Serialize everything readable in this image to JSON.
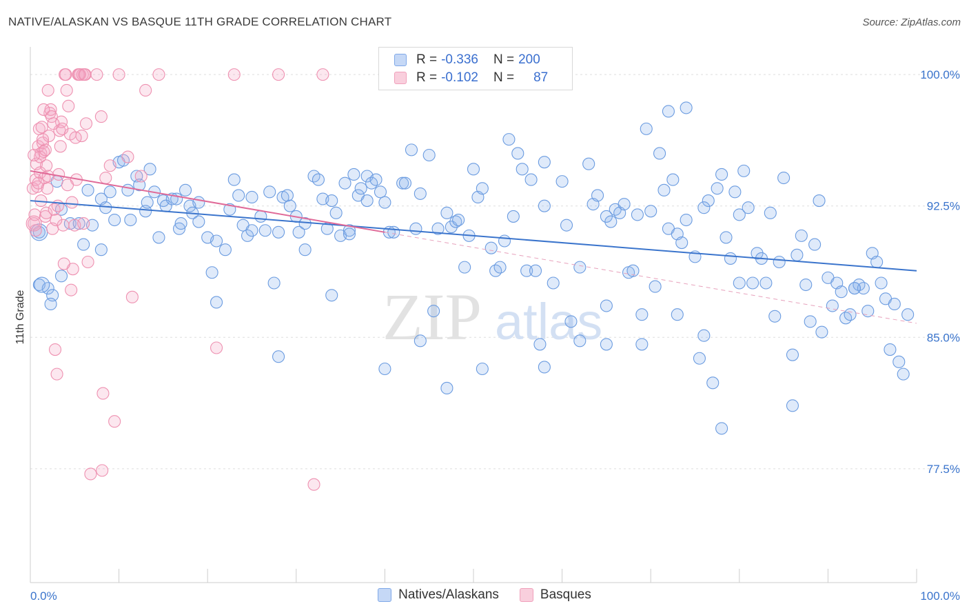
{
  "header": {
    "title": "NATIVE/ALASKAN VS BASQUE 11TH GRADE CORRELATION CHART",
    "source": "Source: ZipAtlas.com"
  },
  "watermark": {
    "text_zip": "ZIP",
    "text_atlas": "atlas"
  },
  "legend_top": {
    "rows": [
      {
        "r_label": "R =",
        "r_value": "-0.336",
        "n_label": "N =",
        "n_value": "200",
        "color": "#7fa8e8"
      },
      {
        "r_label": "R =",
        "r_value": "-0.102",
        "n_label": "N =",
        "n_value": "87",
        "color": "#f0a0bb"
      }
    ]
  },
  "legend_bottom": [
    {
      "label": "Natives/Alaskans",
      "color": "#7fa8e8"
    },
    {
      "label": "Basques",
      "color": "#f0a0bb"
    }
  ],
  "chart_data": {
    "type": "scatter",
    "title": "NATIVE/ALASKAN VS BASQUE 11TH GRADE CORRELATION CHART",
    "xlabel": "",
    "ylabel": "11th Grade",
    "xlim": [
      0,
      100
    ],
    "ylim": [
      71,
      101.5
    ],
    "x_tick_labels": [
      "0.0%",
      "100.0%"
    ],
    "y_ticks": [
      77.5,
      85.0,
      92.5,
      100.0
    ],
    "y_tick_labels": [
      "77.5%",
      "85.0%",
      "92.5%",
      "100.0%"
    ],
    "grid": true,
    "colors": {
      "blue": "#6a9be0",
      "pink": "#ee90b0",
      "blue_line": "#3a74cc",
      "pink_line": "#e06a98"
    },
    "series": [
      {
        "name": "Natives/Alaskans",
        "r": -0.336,
        "n": 200,
        "trend": {
          "x0": 0,
          "y0": 92.8,
          "x1": 100,
          "y1": 88.8
        },
        "points": [
          [
            1,
            91
          ],
          [
            1,
            88
          ],
          [
            2,
            87.8
          ],
          [
            2.5,
            87.4
          ],
          [
            2.3,
            86.9
          ],
          [
            3.5,
            88.5
          ],
          [
            4.5,
            91.5
          ],
          [
            5.5,
            91.5
          ],
          [
            6,
            90.3
          ],
          [
            6.5,
            93.4
          ],
          [
            7,
            91.4
          ],
          [
            3,
            93.9
          ],
          [
            3.5,
            92.3
          ],
          [
            8,
            92.9
          ],
          [
            8,
            90
          ],
          [
            8.5,
            92.4
          ],
          [
            9,
            93.3
          ],
          [
            9.5,
            91.7
          ],
          [
            10,
            95
          ],
          [
            10.5,
            95.1
          ],
          [
            11,
            93.4
          ],
          [
            11.3,
            91.7
          ],
          [
            12,
            94.2
          ],
          [
            12.3,
            93.7
          ],
          [
            13,
            92.2
          ],
          [
            13.2,
            92.7
          ],
          [
            13.5,
            94.6
          ],
          [
            14,
            93.3
          ],
          [
            14.5,
            90.7
          ],
          [
            15,
            92.8
          ],
          [
            15.3,
            92.5
          ],
          [
            16,
            92.9
          ],
          [
            16.5,
            92.9
          ],
          [
            16.8,
            91.2
          ],
          [
            17,
            91.5
          ],
          [
            17.5,
            93.4
          ],
          [
            18,
            92.5
          ],
          [
            18.3,
            92.1
          ],
          [
            19,
            92.7
          ],
          [
            19,
            91.6
          ],
          [
            20,
            90.7
          ],
          [
            20.5,
            88.7
          ],
          [
            21,
            90.5
          ],
          [
            21,
            87
          ],
          [
            22,
            90
          ],
          [
            22.5,
            92.3
          ],
          [
            23,
            94
          ],
          [
            23.5,
            93.1
          ],
          [
            24,
            91.4
          ],
          [
            24.5,
            90.8
          ],
          [
            25,
            91.1
          ],
          [
            25,
            93
          ],
          [
            26,
            91.9
          ],
          [
            26.5,
            91.1
          ],
          [
            27,
            93.3
          ],
          [
            27.5,
            88.1
          ],
          [
            28,
            91
          ],
          [
            28.5,
            93
          ],
          [
            29,
            93.1
          ],
          [
            29.3,
            92.5
          ],
          [
            30,
            91.9
          ],
          [
            30.3,
            91
          ],
          [
            31,
            91.5
          ],
          [
            31,
            90
          ],
          [
            32,
            94.2
          ],
          [
            32.5,
            94
          ],
          [
            33,
            92.9
          ],
          [
            33.5,
            91.2
          ],
          [
            34,
            92.8
          ],
          [
            34.5,
            92.1
          ],
          [
            35,
            90.8
          ],
          [
            35.5,
            93.8
          ],
          [
            36,
            91.1
          ],
          [
            36.5,
            94.3
          ],
          [
            37,
            93.1
          ],
          [
            37.3,
            93.5
          ],
          [
            38,
            94.2
          ],
          [
            38.5,
            93.8
          ],
          [
            39,
            94
          ],
          [
            39.5,
            93.3
          ],
          [
            40,
            92.7
          ],
          [
            40.5,
            91
          ],
          [
            41,
            91
          ],
          [
            42,
            93.8
          ],
          [
            42.3,
            93.8
          ],
          [
            43,
            95.7
          ],
          [
            43.5,
            91.2
          ],
          [
            44,
            93.2
          ],
          [
            45,
            95.4
          ],
          [
            45.5,
            86.5
          ],
          [
            46,
            91.2
          ],
          [
            47,
            92.1
          ],
          [
            47.5,
            91.3
          ],
          [
            48,
            91.6
          ],
          [
            48.3,
            91.7
          ],
          [
            49,
            89
          ],
          [
            49.5,
            90.8
          ],
          [
            50,
            94.6
          ],
          [
            50.5,
            93
          ],
          [
            51,
            93.5
          ],
          [
            52,
            90.1
          ],
          [
            52.5,
            88.8
          ],
          [
            53,
            89
          ],
          [
            53.5,
            90.5
          ],
          [
            54,
            96.3
          ],
          [
            54.5,
            91.9
          ],
          [
            55,
            95.5
          ],
          [
            55.5,
            94.6
          ],
          [
            56,
            88.8
          ],
          [
            56.5,
            94
          ],
          [
            57,
            88.8
          ],
          [
            58,
            92.5
          ],
          [
            58,
            95
          ],
          [
            59,
            88.1
          ],
          [
            60,
            93.9
          ],
          [
            60.5,
            91.4
          ],
          [
            61,
            85.9
          ],
          [
            62,
            84.8
          ],
          [
            62,
            89
          ],
          [
            63,
            94.9
          ],
          [
            63.5,
            92.6
          ],
          [
            64,
            93.1
          ],
          [
            65,
            91.9
          ],
          [
            65,
            86.8
          ],
          [
            65.5,
            91.6
          ],
          [
            66,
            92.3
          ],
          [
            66.5,
            92.1
          ],
          [
            67,
            92.6
          ],
          [
            67.5,
            88.7
          ],
          [
            68,
            88.8
          ],
          [
            68.5,
            92
          ],
          [
            69,
            86.3
          ],
          [
            70,
            92.2
          ],
          [
            70.5,
            87.9
          ],
          [
            71,
            95.5
          ],
          [
            71.5,
            93.4
          ],
          [
            72,
            91.2
          ],
          [
            72.5,
            94
          ],
          [
            73,
            90.9
          ],
          [
            73.5,
            90.4
          ],
          [
            74,
            91.7
          ],
          [
            75,
            89.6
          ],
          [
            76,
            85.1
          ],
          [
            76.5,
            92.8
          ],
          [
            77,
            82.4
          ],
          [
            77.5,
            93.5
          ],
          [
            78,
            94.3
          ],
          [
            78.5,
            90.7
          ],
          [
            79,
            89.5
          ],
          [
            79.5,
            93.3
          ],
          [
            80,
            92
          ],
          [
            80.5,
            94.5
          ],
          [
            81,
            92.4
          ],
          [
            81.5,
            88.1
          ],
          [
            82,
            89.8
          ],
          [
            82.5,
            89.5
          ],
          [
            83,
            88.1
          ],
          [
            83.5,
            92.1
          ],
          [
            84,
            86.2
          ],
          [
            84.5,
            89.3
          ],
          [
            85,
            94.1
          ],
          [
            86,
            84
          ],
          [
            86.5,
            89.7
          ],
          [
            87,
            90.8
          ],
          [
            87.5,
            88
          ],
          [
            88,
            85.9
          ],
          [
            88.5,
            90.3
          ],
          [
            89,
            92.8
          ],
          [
            89.3,
            85.3
          ],
          [
            90,
            88.4
          ],
          [
            90.5,
            86.8
          ],
          [
            91,
            88.1
          ],
          [
            91.5,
            87.6
          ],
          [
            92,
            86.1
          ],
          [
            92.5,
            86.3
          ],
          [
            93,
            87.8
          ],
          [
            93.5,
            88
          ],
          [
            94,
            87.8
          ],
          [
            94.5,
            86.5
          ],
          [
            95,
            89.8
          ],
          [
            95.5,
            89.3
          ],
          [
            96,
            88.1
          ],
          [
            96.5,
            87.2
          ],
          [
            97,
            84.3
          ],
          [
            97.5,
            86.9
          ],
          [
            98,
            83.6
          ],
          [
            98.5,
            82.9
          ],
          [
            99,
            86.3
          ],
          [
            57.5,
            84.6
          ],
          [
            65,
            84.6
          ],
          [
            73,
            86.3
          ],
          [
            80,
            88.1
          ],
          [
            44,
            84.8
          ],
          [
            40,
            83.2
          ],
          [
            47,
            82.1
          ],
          [
            51,
            83.2
          ],
          [
            58,
            83.3
          ],
          [
            69,
            84.6
          ],
          [
            75.5,
            83.8
          ],
          [
            78,
            79.8
          ],
          [
            86,
            81.1
          ],
          [
            93,
            87.8
          ],
          [
            72,
            97.9
          ],
          [
            74,
            98.1
          ],
          [
            69.5,
            96.9
          ],
          [
            76,
            92.4
          ],
          [
            38,
            92.8
          ],
          [
            36,
            90.9
          ],
          [
            34,
            87.4
          ],
          [
            28,
            83.9
          ]
        ]
      },
      {
        "name": "Basques",
        "r": -0.102,
        "n": 87,
        "trend": {
          "x0": 0,
          "y0": 94.5,
          "x1": 40,
          "y1": 91
        },
        "dashed_extension": {
          "x0": 40,
          "y0": 91,
          "x1": 100,
          "y1": 85.8
        },
        "points": [
          [
            0.3,
            93.5
          ],
          [
            0.4,
            91.5
          ],
          [
            0.5,
            92
          ],
          [
            0.6,
            94
          ],
          [
            0.7,
            94.9
          ],
          [
            0.8,
            93.6
          ],
          [
            0.9,
            95.9
          ],
          [
            1,
            96.9
          ],
          [
            1.1,
            94.4
          ],
          [
            1.2,
            95.5
          ],
          [
            1.3,
            97
          ],
          [
            1.4,
            96.1
          ],
          [
            1.5,
            95.6
          ],
          [
            1.6,
            94.1
          ],
          [
            1.7,
            91.9
          ],
          [
            1.8,
            92.1
          ],
          [
            1.9,
            93.5
          ],
          [
            2,
            94.2
          ],
          [
            2.1,
            96.5
          ],
          [
            2.2,
            97.8
          ],
          [
            2.3,
            98
          ],
          [
            2.5,
            91.2
          ],
          [
            2.7,
            92.3
          ],
          [
            2.8,
            84.3
          ],
          [
            3,
            82.9
          ],
          [
            3.2,
            94.3
          ],
          [
            3.3,
            96.8
          ],
          [
            3.4,
            95.9
          ],
          [
            3.5,
            97.3
          ],
          [
            3.7,
            91.4
          ],
          [
            3.9,
            100
          ],
          [
            4.1,
            99.1
          ],
          [
            4.3,
            98.2
          ],
          [
            4.5,
            96.6
          ],
          [
            4.7,
            92.7
          ],
          [
            4.8,
            88.9
          ],
          [
            5,
            91.4
          ],
          [
            5.2,
            94
          ],
          [
            5.4,
            100
          ],
          [
            5.6,
            100
          ],
          [
            5.8,
            96.5
          ],
          [
            5.9,
            100
          ],
          [
            6,
            91.5
          ],
          [
            6.2,
            100
          ],
          [
            6.3,
            97.2
          ],
          [
            6.5,
            89.3
          ],
          [
            6.8,
            77.2
          ],
          [
            7.5,
            100
          ],
          [
            8,
            97.6
          ],
          [
            8.1,
            77.4
          ],
          [
            8.2,
            81.8
          ],
          [
            8.5,
            94.1
          ],
          [
            9,
            94.8
          ],
          [
            9.5,
            80.2
          ],
          [
            10,
            100
          ],
          [
            11,
            95.3
          ],
          [
            11.5,
            87.3
          ],
          [
            12.5,
            94.2
          ],
          [
            13,
            99.1
          ],
          [
            14.5,
            100
          ],
          [
            21,
            84.4
          ],
          [
            23,
            100
          ],
          [
            28,
            100
          ],
          [
            33,
            100
          ],
          [
            32,
            76.6
          ],
          [
            1.1,
            95.3
          ],
          [
            1.5,
            98
          ],
          [
            2,
            99.1
          ],
          [
            2.4,
            97.6
          ],
          [
            3.6,
            96.9
          ],
          [
            0.9,
            93.8
          ],
          [
            1.2,
            92.8
          ],
          [
            1.7,
            95.7
          ],
          [
            0.6,
            91.1
          ],
          [
            1.4,
            96.3
          ],
          [
            4,
            100
          ],
          [
            5.5,
            100
          ],
          [
            6.1,
            100
          ],
          [
            2.9,
            91.7
          ],
          [
            3.8,
            89.2
          ],
          [
            4.6,
            87.7
          ],
          [
            5.1,
            96.4
          ],
          [
            1.8,
            94.8
          ],
          [
            0.4,
            95.4
          ],
          [
            2.6,
            97.2
          ],
          [
            3.1,
            92.5
          ],
          [
            4.2,
            93.7
          ]
        ]
      }
    ]
  }
}
